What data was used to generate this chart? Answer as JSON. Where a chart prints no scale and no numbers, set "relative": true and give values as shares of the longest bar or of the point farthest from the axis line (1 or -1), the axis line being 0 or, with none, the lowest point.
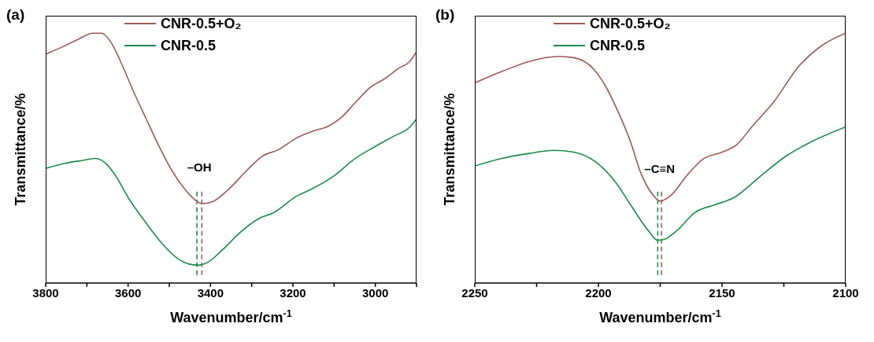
{
  "chart_data": [
    {
      "type": "line",
      "title": "(a)",
      "xlabel": "Wavenumber/cm$^{-1}$",
      "ylabel": "Transmittance/%",
      "relative": true,
      "legend": "top left",
      "grid": false,
      "marker": "none",
      "line_style": "solid",
      "xlim": [
        3800,
        2900
      ],
      "xticks": [
        3800,
        {
          "value": 3700,
          "label": null
        },
        3600,
        {
          "value": 3500,
          "label": null
        },
        3400,
        {
          "value": 3300,
          "label": null
        },
        3200,
        {
          "value": 3100,
          "label": null
        },
        3000,
        {
          "value": 2900,
          "label": null
        }
      ],
      "series": [
        {
          "name": "CNR-0.5+O₂",
          "color": "#9b5a5a",
          "x": [
            3800,
            3753,
            3722,
            3685,
            3664,
            3642,
            3618,
            3587,
            3556,
            3525,
            3495,
            3464,
            3439,
            3421,
            3396,
            3360,
            3310,
            3274,
            3236,
            3194,
            3151,
            3114,
            3083,
            3046,
            3010,
            2979,
            2942,
            2917,
            2900
          ],
          "values": [
            0.916,
            0.95,
            0.975,
            1.0,
            1.0,
            0.965,
            0.886,
            0.767,
            0.657,
            0.548,
            0.454,
            0.379,
            0.335,
            0.318,
            0.325,
            0.369,
            0.454,
            0.508,
            0.533,
            0.578,
            0.608,
            0.628,
            0.662,
            0.727,
            0.786,
            0.816,
            0.861,
            0.886,
            0.926
          ]
        },
        {
          "name": "CNR-0.5",
          "color": "#1f8a4c",
          "x": [
            3800,
            3753,
            3710,
            3679,
            3654,
            3630,
            3599,
            3556,
            3519,
            3482,
            3452,
            3430,
            3409,
            3372,
            3329,
            3286,
            3243,
            3194,
            3151,
            3096,
            3053,
            3004,
            2955,
            2917,
            2900
          ],
          "values": [
            0.459,
            0.479,
            0.491,
            0.499,
            0.479,
            0.429,
            0.34,
            0.24,
            0.161,
            0.101,
            0.076,
            0.072,
            0.081,
            0.131,
            0.201,
            0.255,
            0.285,
            0.345,
            0.379,
            0.434,
            0.494,
            0.543,
            0.588,
            0.623,
            0.657
          ]
        }
      ],
      "ref_lines": [
        {
          "axis": "x",
          "value": 3433,
          "color": "#1f8a4c",
          "line_style": "dashed"
        },
        {
          "axis": "x",
          "value": 3421,
          "color": "#9b5a5a",
          "line_style": "dashed"
        }
      ],
      "annotations": [
        "–OH"
      ]
    },
    {
      "type": "line",
      "title": "(b)",
      "xlabel": "Wavenumber/cm$^{-1}$",
      "ylabel": "Transmittance/%",
      "relative": true,
      "legend": "top left",
      "grid": false,
      "marker": "none",
      "line_style": "solid",
      "xlim": [
        2250,
        2100
      ],
      "xticks": [
        2250,
        {
          "value": 2225,
          "label": null
        },
        2200,
        {
          "value": 2175,
          "label": null
        },
        2150,
        {
          "value": 2125,
          "label": null
        },
        2100
      ],
      "series": [
        {
          "name": "CNR-0.5+O₂",
          "color": "#9b5a5a",
          "x": [
            2250,
            2239,
            2228,
            2216,
            2210,
            2202,
            2197,
            2192,
            2187,
            2183,
            2178,
            2175,
            2171,
            2164,
            2158,
            2150,
            2144,
            2138,
            2129,
            2119,
            2110,
            2100
          ],
          "values": [
            0.801,
            0.847,
            0.887,
            0.907,
            0.902,
            0.857,
            0.786,
            0.685,
            0.565,
            0.444,
            0.353,
            0.328,
            0.348,
            0.433,
            0.494,
            0.524,
            0.554,
            0.625,
            0.726,
            0.867,
            0.948,
            1.0
          ]
        },
        {
          "name": "CNR-0.5",
          "color": "#1f8a4c",
          "x": [
            2250,
            2239,
            2228,
            2218,
            2210,
            2201,
            2193,
            2187,
            2180,
            2176,
            2173,
            2168,
            2161,
            2153,
            2145,
            2135,
            2124,
            2114,
            2100
          ],
          "values": [
            0.469,
            0.499,
            0.519,
            0.531,
            0.524,
            0.484,
            0.403,
            0.313,
            0.212,
            0.171,
            0.176,
            0.212,
            0.282,
            0.313,
            0.343,
            0.423,
            0.509,
            0.565,
            0.625
          ]
        }
      ],
      "ref_lines": [
        {
          "axis": "x",
          "value": 2176,
          "color": "#1f8a4c",
          "line_style": "dashed"
        },
        {
          "axis": "x",
          "value": 2174.5,
          "color": "#9b5a5a",
          "line_style": "dashed"
        }
      ],
      "annotations": [
        "–C≡N"
      ]
    }
  ]
}
